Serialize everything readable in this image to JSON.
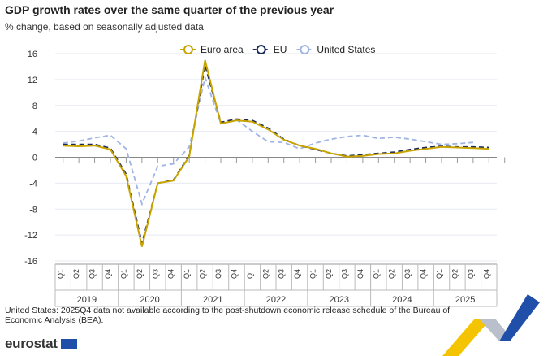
{
  "chart_data": {
    "type": "line",
    "title": "GDP growth rates over the same quarter of the previous year",
    "subtitle": "% change, based on seasonally adjusted data",
    "ylim": [
      -16,
      16
    ],
    "yticks": [
      -16,
      -12,
      -8,
      -4,
      0,
      4,
      8,
      12,
      16
    ],
    "years": [
      "2019",
      "2020",
      "2021",
      "2022",
      "2023",
      "2024",
      "2025"
    ],
    "quarters": [
      "Q1",
      "Q2",
      "Q3",
      "Q4"
    ],
    "grid": true,
    "legend_placement": "top",
    "series": [
      {
        "name": "Euro area",
        "color": "#c8a400",
        "style": "solid",
        "values": [
          1.8,
          1.7,
          1.8,
          1.2,
          -2.9,
          -13.8,
          -4.0,
          -3.6,
          0.1,
          15.0,
          5.2,
          5.7,
          5.5,
          4.3,
          2.7,
          1.8,
          1.3,
          0.6,
          0.1,
          0.2,
          0.5,
          0.6,
          1.0,
          1.3,
          1.6,
          1.5,
          1.4,
          1.3
        ]
      },
      {
        "name": "EU",
        "color": "#1a2a5a",
        "style": "dashed",
        "values": [
          2.0,
          2.0,
          2.0,
          1.4,
          -2.6,
          -13.3,
          -4.0,
          -3.5,
          0.3,
          14.2,
          5.4,
          5.9,
          5.7,
          4.5,
          2.8,
          1.8,
          1.2,
          0.6,
          0.2,
          0.4,
          0.6,
          0.8,
          1.2,
          1.5,
          1.7,
          1.6,
          1.6,
          1.5
        ]
      },
      {
        "name": "United States",
        "color": "#9fb3e6",
        "style": "dashed",
        "values": [
          2.2,
          2.5,
          3.0,
          3.4,
          1.3,
          -7.2,
          -1.4,
          -1.0,
          1.6,
          12.3,
          5.2,
          5.8,
          4.0,
          2.4,
          2.3,
          1.3,
          2.2,
          2.8,
          3.2,
          3.4,
          2.9,
          3.1,
          2.8,
          2.4,
          2.0,
          2.1,
          2.3,
          null
        ]
      }
    ]
  },
  "note": "United States: 2025Q4 data not available according to the post-shutdown economic release schedule of the Bureau of Economic Analysis (BEA).",
  "logo": "eurostat"
}
